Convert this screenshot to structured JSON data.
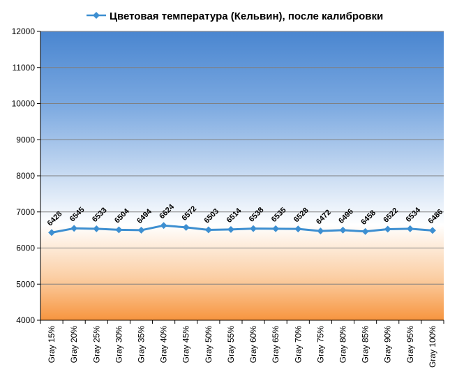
{
  "chart_data": {
    "type": "line",
    "title": "Цветовая температура (Кельвин), после калибровки",
    "xlabel": "",
    "ylabel": "",
    "ylim": [
      4000,
      12000
    ],
    "yticks": [
      4000,
      5000,
      6000,
      7000,
      8000,
      9000,
      10000,
      11000,
      12000
    ],
    "grid": true,
    "legend": "top",
    "categories": [
      "Gray 15%",
      "Gray 20%",
      "Gray 25%",
      "Gray 30%",
      "Gray 35%",
      "Gray 40%",
      "Gray 45%",
      "Gray 50%",
      "Gray 55%",
      "Gray 60%",
      "Gray 65%",
      "Gray 70%",
      "Gray 75%",
      "Gray 80%",
      "Gray 85%",
      "Gray 90%",
      "Gray 95%",
      "Gray 100%"
    ],
    "series": [
      {
        "name": "Цветовая температура (Кельвин), после калибровки",
        "values": [
          6428,
          6545,
          6533,
          6504,
          6494,
          6624,
          6572,
          6503,
          6514,
          6538,
          6535,
          6528,
          6472,
          6496,
          6458,
          6522,
          6534,
          6486
        ],
        "color": "#3d8fd1"
      }
    ],
    "background_gradient": [
      "#4a86d0",
      "#ffffff",
      "#f7953f"
    ]
  }
}
